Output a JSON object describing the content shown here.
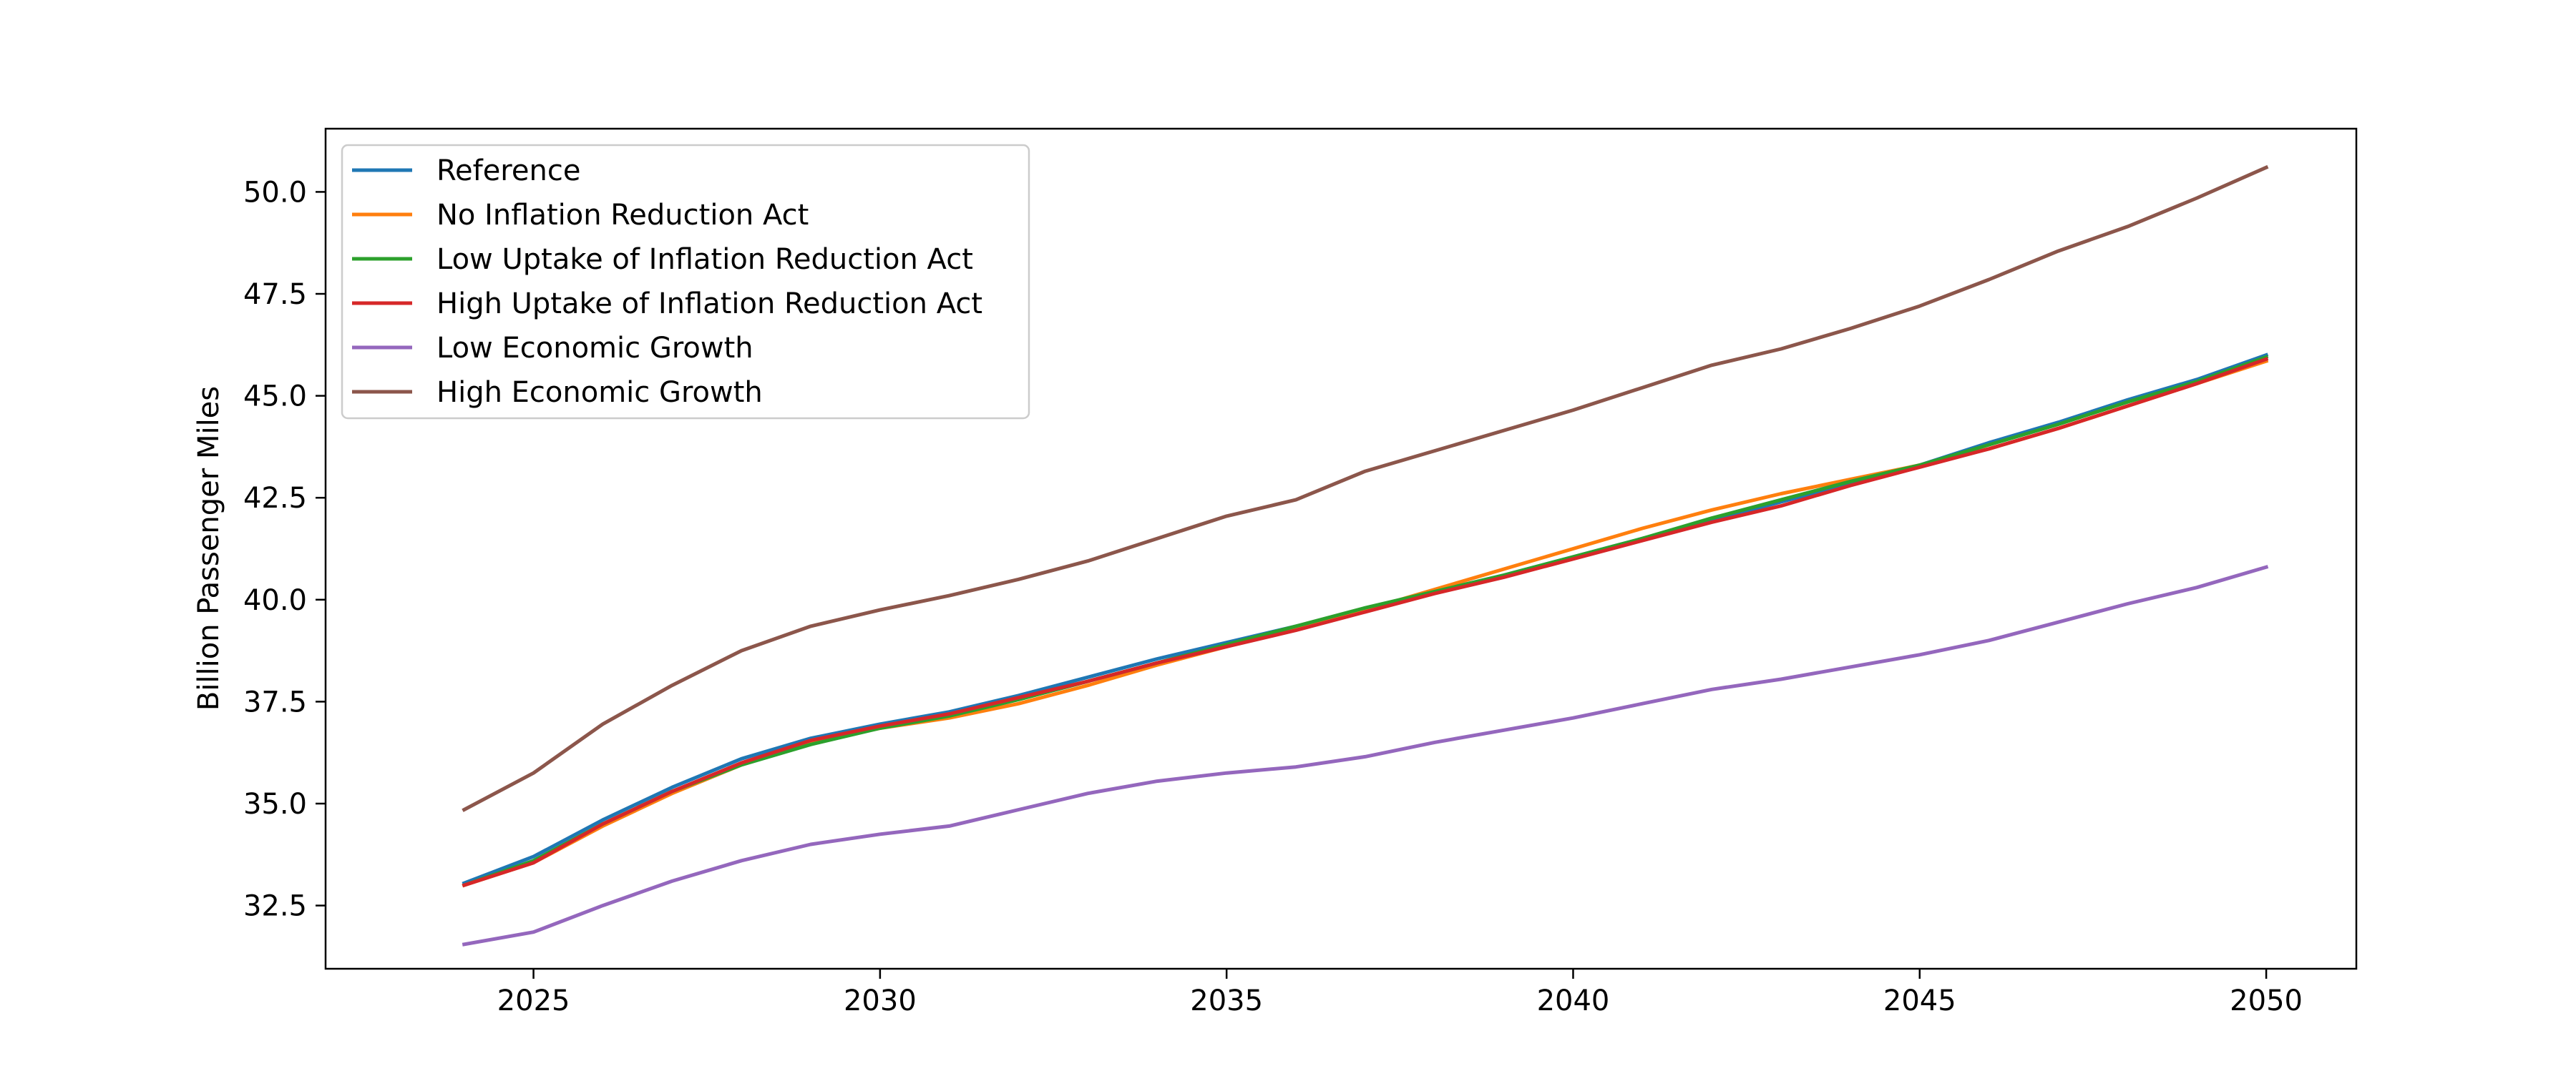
{
  "chart_data": {
    "type": "line",
    "title": "",
    "xlabel": "",
    "ylabel": "Billion Passenger Miles",
    "xlim": [
      2022.0,
      2051.3
    ],
    "ylim": [
      30.95,
      51.55
    ],
    "xticks": [
      2025,
      2030,
      2035,
      2040,
      2045,
      2050
    ],
    "yticks": [
      32.5,
      35.0,
      37.5,
      40.0,
      42.5,
      45.0,
      47.5,
      50.0
    ],
    "grid": false,
    "legend_position": "top-left",
    "x": [
      2024,
      2025,
      2026,
      2027,
      2028,
      2029,
      2030,
      2031,
      2032,
      2033,
      2034,
      2035,
      2036,
      2037,
      2038,
      2039,
      2040,
      2041,
      2042,
      2043,
      2044,
      2045,
      2046,
      2047,
      2048,
      2049,
      2050
    ],
    "series": [
      {
        "name": "Reference",
        "color": "#1f77b4",
        "values": [
          33.05,
          33.7,
          34.6,
          35.4,
          36.1,
          36.6,
          36.95,
          37.25,
          37.65,
          38.1,
          38.55,
          38.95,
          39.35,
          39.75,
          40.2,
          40.6,
          41.05,
          41.5,
          41.95,
          42.4,
          42.85,
          43.3,
          43.85,
          44.35,
          44.9,
          45.4,
          46.0
        ]
      },
      {
        "name": "No Inflation Reduction Act",
        "color": "#ff7f0e",
        "values": [
          33.0,
          33.55,
          34.45,
          35.25,
          35.95,
          36.5,
          36.85,
          37.1,
          37.45,
          37.9,
          38.4,
          38.85,
          39.3,
          39.75,
          40.25,
          40.75,
          41.25,
          41.75,
          42.2,
          42.6,
          42.95,
          43.3,
          43.7,
          44.2,
          44.75,
          45.3,
          45.85
        ]
      },
      {
        "name": "Low Uptake of Inflation Reduction Act",
        "color": "#2ca02c",
        "values": [
          33.0,
          33.6,
          34.5,
          35.3,
          35.95,
          36.45,
          36.85,
          37.15,
          37.55,
          38.0,
          38.45,
          38.9,
          39.35,
          39.8,
          40.2,
          40.6,
          41.05,
          41.5,
          42.0,
          42.45,
          42.9,
          43.3,
          43.8,
          44.3,
          44.85,
          45.35,
          45.95
        ]
      },
      {
        "name": "High Uptake of Inflation Reduction Act",
        "color": "#d62728",
        "values": [
          33.0,
          33.55,
          34.5,
          35.3,
          36.0,
          36.55,
          36.9,
          37.2,
          37.6,
          38.0,
          38.45,
          38.85,
          39.25,
          39.7,
          40.15,
          40.55,
          41.0,
          41.45,
          41.9,
          42.3,
          42.8,
          43.25,
          43.7,
          44.2,
          44.75,
          45.3,
          45.9
        ]
      },
      {
        "name": "Low Economic Growth",
        "color": "#9467bd",
        "values": [
          31.55,
          31.85,
          32.5,
          33.1,
          33.6,
          34.0,
          34.25,
          34.45,
          34.85,
          35.25,
          35.55,
          35.75,
          35.9,
          36.15,
          36.5,
          36.8,
          37.1,
          37.45,
          37.8,
          38.05,
          38.35,
          38.65,
          39.0,
          39.45,
          39.9,
          40.3,
          40.8
        ]
      },
      {
        "name": "High Economic Growth",
        "color": "#8c564b",
        "values": [
          34.85,
          35.75,
          36.95,
          37.9,
          38.75,
          39.35,
          39.75,
          40.1,
          40.5,
          40.95,
          41.5,
          42.05,
          42.45,
          43.15,
          43.65,
          44.15,
          44.65,
          45.2,
          45.75,
          46.15,
          46.65,
          47.2,
          47.85,
          48.55,
          49.15,
          49.85,
          50.6
        ]
      }
    ]
  }
}
